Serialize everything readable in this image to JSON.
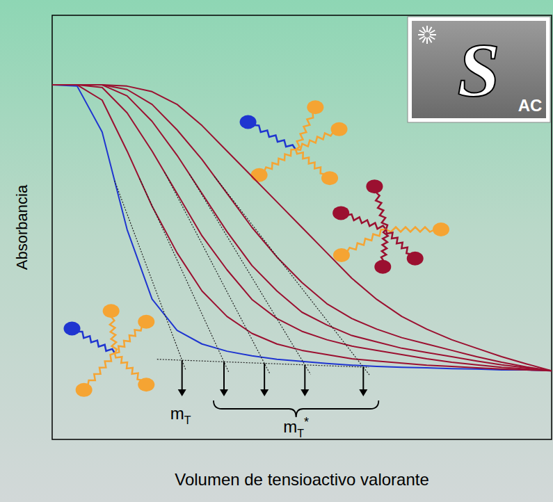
{
  "chart_data": {
    "type": "line",
    "x_label": "Volumen de tensioactivo valorante",
    "y_label": "Absorbancia",
    "xlim": [
      0,
      100
    ],
    "ylim": [
      0,
      100
    ],
    "tick_labels": false,
    "grid": false,
    "x": [
      0,
      5,
      10,
      15,
      20,
      25,
      30,
      35,
      40,
      45,
      50,
      55,
      60,
      65,
      70,
      75,
      80,
      85,
      90,
      95,
      100
    ],
    "series": [
      {
        "color": "#1f35d0",
        "values": [
          83.6,
          83.3,
          72.5,
          49.5,
          33.1,
          25.7,
          22.5,
          20.8,
          19.7,
          18.9,
          18.4,
          17.9,
          17.5,
          17.2,
          17.0,
          16.9,
          16.7,
          16.6,
          16.4,
          16.4,
          16.2
        ]
      },
      {
        "color": "#9b1030",
        "values": [
          83.6,
          83.6,
          80,
          68,
          55,
          44,
          35,
          29,
          25,
          22.5,
          21,
          20,
          19,
          18.5,
          18,
          17.5,
          17.2,
          16.9,
          16.6,
          16.4,
          16.2
        ]
      },
      {
        "color": "#9b1030",
        "values": [
          83.6,
          83.6,
          83,
          77,
          68,
          58,
          48,
          40,
          33,
          28.5,
          25.5,
          23.5,
          22,
          21,
          20,
          19,
          18.2,
          17.6,
          17,
          16.6,
          16.2
        ]
      },
      {
        "color": "#9b1030",
        "values": [
          83.6,
          83.6,
          83.6,
          81,
          75,
          67,
          58,
          49,
          41,
          35,
          30,
          27,
          24.5,
          23,
          21.5,
          20.5,
          19.5,
          18.5,
          17.6,
          16.9,
          16.2
        ]
      },
      {
        "color": "#9b1030",
        "values": [
          83.6,
          83.6,
          83.6,
          82.5,
          79,
          73,
          66,
          58,
          50,
          43,
          37,
          32,
          28.5,
          26,
          24,
          22.5,
          21,
          19.5,
          18.2,
          17.1,
          16.2
        ]
      },
      {
        "color": "#9b1030",
        "values": [
          83.6,
          83.6,
          83.6,
          83.3,
          82,
          79,
          74,
          68,
          62,
          56,
          50,
          44,
          38,
          33,
          29,
          26,
          23.5,
          21.5,
          19.5,
          17.8,
          16.2
        ]
      }
    ],
    "baseline": {
      "x": [
        21.0,
        63.4
      ],
      "y": [
        18.9,
        17.0
      ]
    },
    "end_points": [
      {
        "label": {
          "text": "m",
          "sub": "T"
        },
        "x": [
          26.0
        ]
      },
      {
        "label": {
          "text": "m",
          "sub": "T",
          "sup": "*"
        },
        "x": [
          34.4,
          42.5,
          50.6,
          62.3
        ]
      }
    ]
  },
  "logo": {
    "main": "S",
    "sub": "AC"
  }
}
